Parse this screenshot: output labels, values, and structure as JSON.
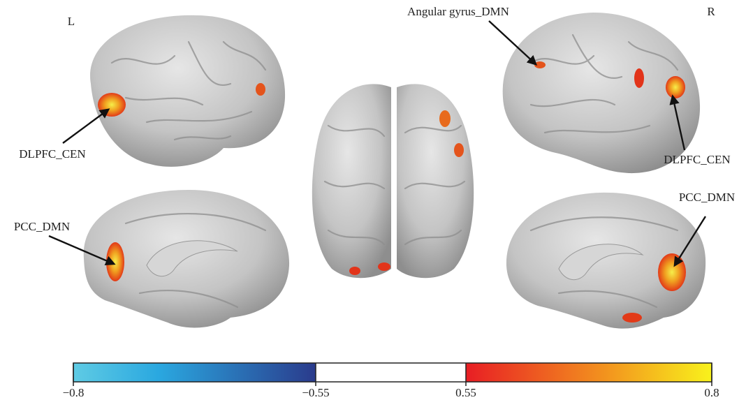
{
  "labels": {
    "left": "L",
    "right": "R",
    "angular": "Angular gyrus_DMN",
    "dlpfc_left": "DLPFC_CEN",
    "dlpfc_right": "DLPFC_CEN",
    "pcc_left": "PCC_DMN",
    "pcc_right": "PCC_DMN"
  },
  "colorbar": {
    "ticks": [
      {
        "value": -0.8,
        "label": "−0.8"
      },
      {
        "value": -0.55,
        "label": "−0.55"
      },
      {
        "value": 0.55,
        "label": "0.55"
      },
      {
        "value": 0.8,
        "label": "0.8"
      }
    ]
  }
}
